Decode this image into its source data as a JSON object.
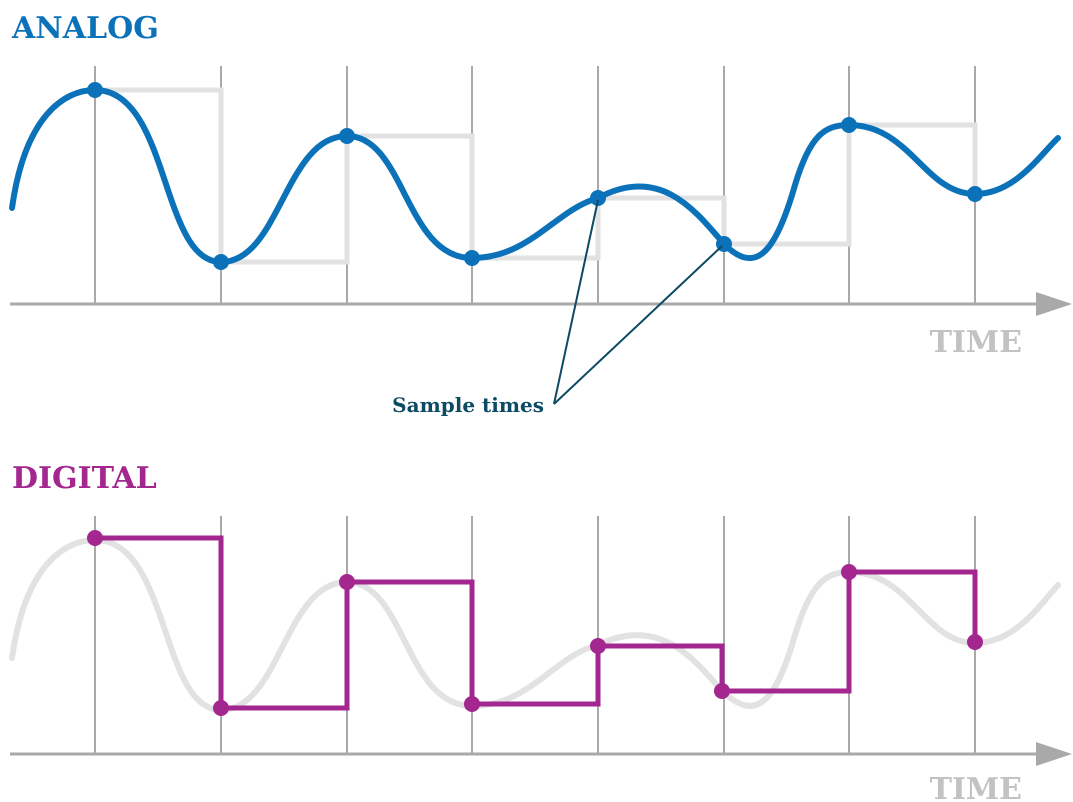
{
  "colors": {
    "analog": "#0b72b9",
    "digital": "#a3278f",
    "grid": "#a9a9a9",
    "ghost": "#e2e2e2",
    "annotation": "#0d4a63"
  },
  "analog_panel": {
    "title": "ANALOG",
    "axis_label": "TIME"
  },
  "digital_panel": {
    "title": "DIGITAL",
    "axis_label": "TIME"
  },
  "annotation": {
    "label": "Sample times"
  }
}
